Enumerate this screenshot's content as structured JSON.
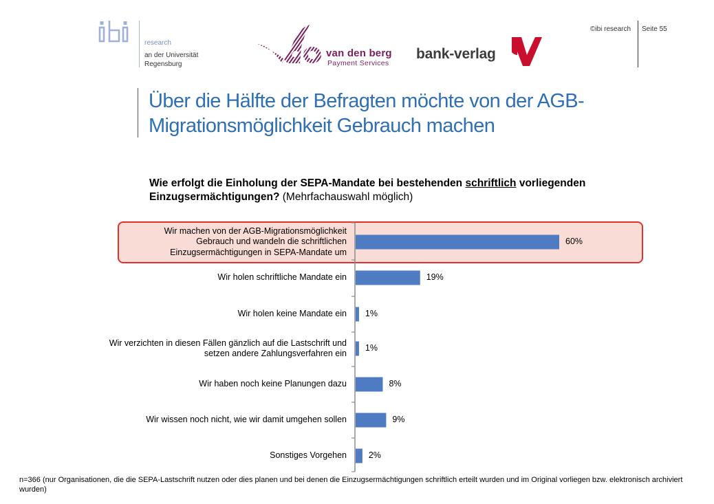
{
  "header": {
    "ibi_mark": "ibi",
    "ibi_research": "research",
    "ibi_line1": "an der Universität",
    "ibi_line2": "Regensburg",
    "vdb_name": "van den berg",
    "vdb_sub": "Payment Services",
    "bv_name": "bank-verlag",
    "copyright": "©ibi research",
    "page": "Seite 55"
  },
  "title": "Über die Hälfte der Befragten möchte von der AGB-Migrationsmöglichkeit Gebrauch machen",
  "question": {
    "part1": "Wie erfolgt die Einholung der SEPA-Mandate bei bestehenden ",
    "underlined": "schriftlich",
    "part2": " vorliegenden Einzugsermächtigungen?",
    "note": " (Mehrfachauswahl möglich)"
  },
  "chart_data": {
    "type": "bar",
    "orientation": "horizontal",
    "categories": [
      "Wir machen von der AGB-Migrationsmöglichkeit Gebrauch und wandeln die schriftlichen Einzugsermächtigungen in SEPA-Mandate um",
      "Wir holen schriftliche Mandate ein",
      "Wir holen keine Mandate ein",
      "Wir verzichten in diesen Fällen gänzlich auf die Lastschrift und setzen andere Zahlungsverfahren ein",
      "Wir haben noch keine Planungen dazu",
      "Wir wissen noch nicht, wie wir damit umgehen sollen",
      "Sonstiges Vorgehen"
    ],
    "values": [
      60,
      19,
      1,
      1,
      8,
      9,
      2
    ],
    "value_labels": [
      "60%",
      "19%",
      "1%",
      "1%",
      "8%",
      "9%",
      "2%"
    ],
    "unit": "%",
    "highlighted_category_index": 0,
    "bar_color": "#4f7bc3",
    "highlight_fill": "#fadcd6",
    "highlight_border": "#e0312d",
    "xlim": [
      0,
      60
    ]
  },
  "footnote": "n=366 (nur Organisationen, die die SEPA-Lastschrift nutzen oder dies planen und bei denen die Einzugsermächtigungen schriftlich erteilt wurden und im Original vorliegen bzw. elektronisch archiviert wurden)"
}
